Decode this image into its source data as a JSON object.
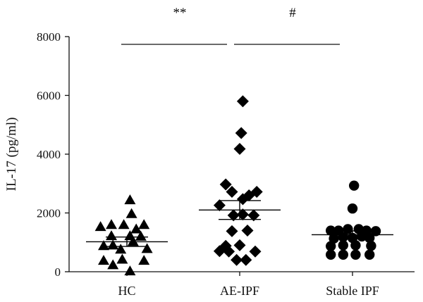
{
  "chart_data": {
    "type": "scatter",
    "ylabel": "IL-17 (pg/ml)",
    "xlabel": "",
    "ylim": [
      0,
      8000
    ],
    "yticks": [
      0,
      2000,
      4000,
      6000,
      8000
    ],
    "categories": [
      "HC",
      "AE-IPF",
      "Stable IPF"
    ],
    "colors": {
      "marker": "#000000",
      "axis": "#111111"
    },
    "series": [
      {
        "category": "HC",
        "marker": "triangle-icon",
        "mean": 1020,
        "sem_low": 860,
        "sem_high": 1180,
        "points": [
          [
            -0.5,
            1600
          ],
          [
            -0.1,
            1600
          ],
          [
            0.55,
            1600
          ],
          [
            0.3,
            1450
          ],
          [
            0.15,
            1970
          ],
          [
            0.1,
            2440
          ],
          [
            -0.5,
            1220
          ],
          [
            0.1,
            1220
          ],
          [
            -0.45,
            900
          ],
          [
            -0.75,
            880
          ],
          [
            0.45,
            1200
          ],
          [
            -0.85,
            1530
          ],
          [
            0.2,
            1020
          ],
          [
            -0.2,
            760
          ],
          [
            0.65,
            780
          ],
          [
            -0.75,
            380
          ],
          [
            -0.15,
            420
          ],
          [
            -0.45,
            230
          ],
          [
            0.55,
            380
          ],
          [
            0.1,
            20
          ]
        ]
      },
      {
        "category": "AE-IPF",
        "marker": "diamond-icon",
        "mean": 2100,
        "sem_low": 1780,
        "sem_high": 2420,
        "points": [
          [
            0.1,
            5800
          ],
          [
            0.05,
            4720
          ],
          [
            0.0,
            4180
          ],
          [
            -0.45,
            2970
          ],
          [
            -0.25,
            2720
          ],
          [
            0.1,
            2470
          ],
          [
            0.3,
            2600
          ],
          [
            0.55,
            2720
          ],
          [
            -0.65,
            2260
          ],
          [
            -0.2,
            1920
          ],
          [
            0.1,
            1950
          ],
          [
            0.45,
            1920
          ],
          [
            -0.25,
            1380
          ],
          [
            0.25,
            1400
          ],
          [
            -0.45,
            880
          ],
          [
            0.0,
            900
          ],
          [
            -0.65,
            700
          ],
          [
            -0.35,
            690
          ],
          [
            0.5,
            690
          ],
          [
            -0.1,
            400
          ],
          [
            0.2,
            400
          ]
        ]
      },
      {
        "category": "Stable IPF",
        "marker": "circle-icon",
        "mean": 1260,
        "sem_low": 1130,
        "sem_high": 1390,
        "points": [
          [
            0.05,
            2930
          ],
          [
            0.0,
            2150
          ],
          [
            -0.7,
            1400
          ],
          [
            -0.45,
            1400
          ],
          [
            -0.15,
            1450
          ],
          [
            0.2,
            1450
          ],
          [
            0.45,
            1400
          ],
          [
            0.75,
            1380
          ],
          [
            -0.6,
            1130
          ],
          [
            -0.3,
            1180
          ],
          [
            0.0,
            1150
          ],
          [
            0.3,
            1200
          ],
          [
            0.55,
            1150
          ],
          [
            -0.7,
            870
          ],
          [
            -0.3,
            900
          ],
          [
            0.1,
            900
          ],
          [
            0.6,
            880
          ],
          [
            -0.7,
            580
          ],
          [
            -0.3,
            580
          ],
          [
            0.1,
            580
          ],
          [
            0.55,
            580
          ]
        ]
      }
    ],
    "comparisons": [
      {
        "from": "HC",
        "to": "AE-IPF",
        "label": "**"
      },
      {
        "from": "AE-IPF",
        "to": "Stable IPF",
        "label": "#"
      }
    ]
  }
}
